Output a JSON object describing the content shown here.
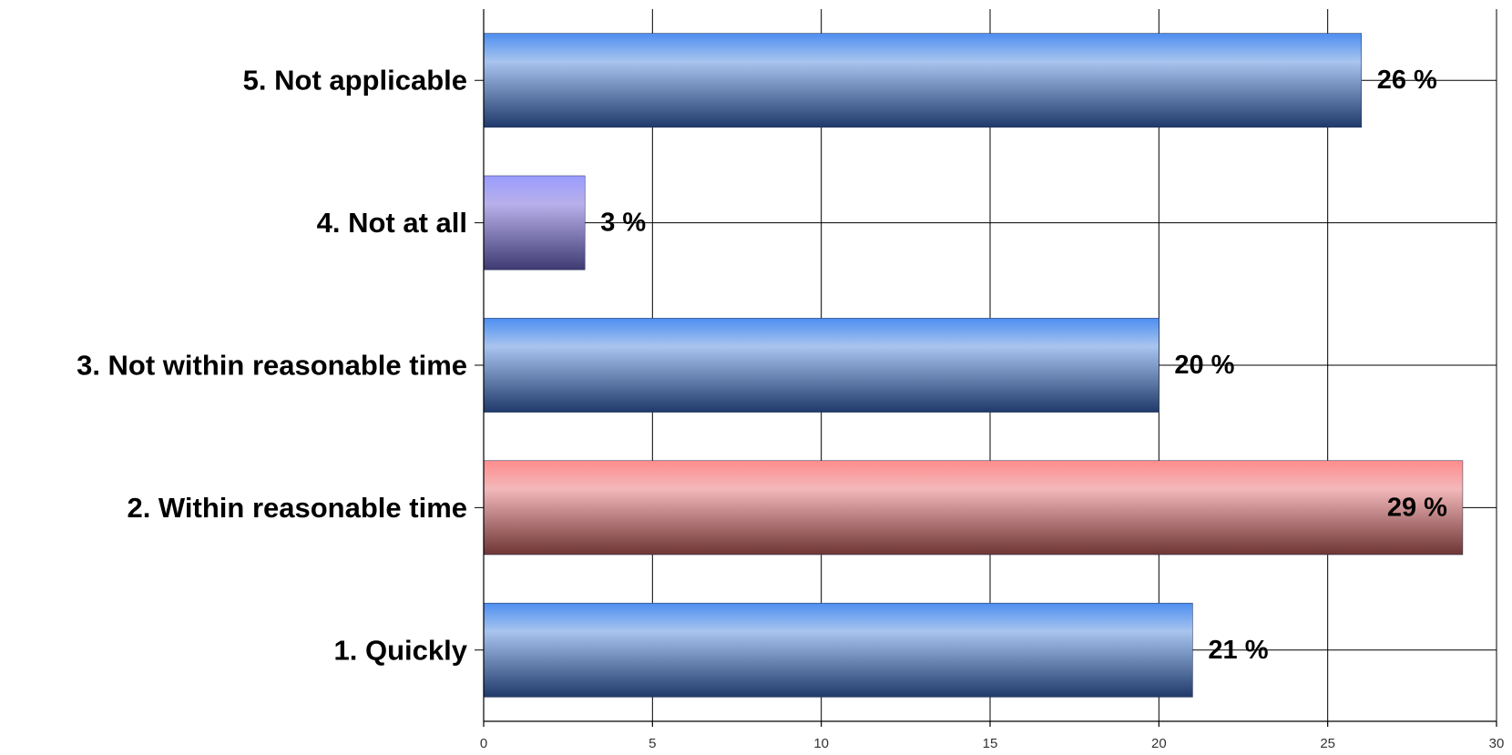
{
  "chart_data": {
    "type": "bar",
    "orientation": "horizontal",
    "categories": [
      "1. Quickly",
      "2. Within reasonable time",
      "3. Not within reasonable time",
      "4. Not at all",
      "5. Not applicable"
    ],
    "values": [
      21,
      29,
      20,
      3,
      26
    ],
    "data_labels": [
      "21 %",
      "29 %",
      "20 %",
      "3 %",
      "26 %"
    ],
    "bar_colors": [
      "blue",
      "red",
      "blue",
      "violet",
      "blue"
    ],
    "colors": {
      "blue": {
        "top": "#4d8ef0",
        "mid": "#a8c4ef",
        "bottom": "#1f3a6a"
      },
      "red": {
        "top": "#ff8c8c",
        "mid": "#f3b8ba",
        "bottom": "#6e3535"
      },
      "violet": {
        "top": "#9a9cff",
        "mid": "#b8b0ea",
        "bottom": "#3f3a72"
      }
    },
    "xlim": [
      0,
      30
    ],
    "x_ticks": [
      0,
      5,
      10,
      15,
      20,
      25,
      30
    ],
    "x_tick_labels": [
      "0",
      "5",
      "10",
      "15",
      "20",
      "25",
      "30"
    ],
    "grid": true,
    "title": "",
    "xlabel": "",
    "ylabel": ""
  }
}
